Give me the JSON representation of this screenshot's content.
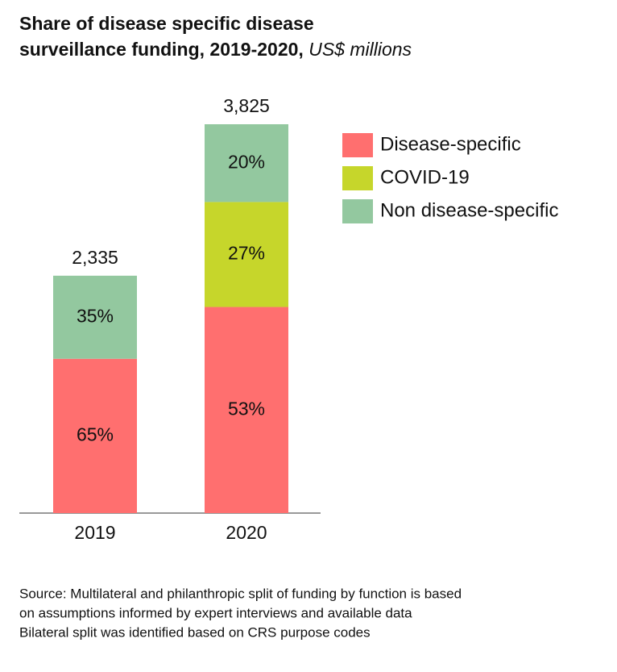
{
  "chart_data": {
    "type": "stacked-bar",
    "title": "Share of disease specific disease surveillance funding, 2019-2020,",
    "subtitle": "US$ millions",
    "categories": [
      "2019",
      "2020"
    ],
    "series": [
      {
        "name": "Disease-specific",
        "color": "#ff6f6f",
        "values": [
          65,
          53
        ],
        "value_labels": [
          "65%",
          "53%"
        ]
      },
      {
        "name": "COVID-19",
        "color": "#c6d62b",
        "values": [
          null,
          27
        ],
        "value_labels": [
          null,
          "27%"
        ]
      },
      {
        "name": "Non disease-specific",
        "color": "#93c89f",
        "values": [
          35,
          20
        ],
        "value_labels": [
          "35%",
          "20%"
        ]
      }
    ],
    "totals": {
      "values": [
        2335,
        3825
      ],
      "value_labels": [
        "2,335",
        "3,825"
      ]
    },
    "source": [
      "Source: Multilateral and philanthropic split of funding by function is based",
      "on assumptions informed by expert interviews and available data",
      "Bilateral split was identified based on CRS purpose codes"
    ]
  }
}
